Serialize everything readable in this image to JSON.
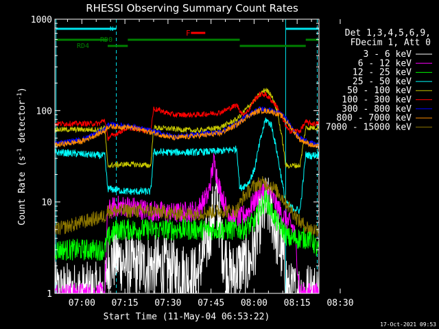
{
  "chart_data": {
    "type": "line",
    "title": "RHESSI Observing Summary Count Rates",
    "xlabel": "Start Time (11-May-04 06:53:22)",
    "ylabel_main": "Count Rate (s",
    "ylabel_sup1": "-1",
    "ylabel_mid": " detector",
    "ylabel_sup2": "-1",
    "ylabel_end": ")",
    "yscale": "log",
    "ylim": [
      1,
      1000
    ],
    "xlim_minutes": [
      -9.4,
      82.6
    ],
    "x_tick_labels": [
      "07:00",
      "07:15",
      "07:30",
      "07:45",
      "08:00",
      "08:15",
      "08:30"
    ],
    "x_tick_minutes": [
      0,
      15,
      30,
      45,
      60,
      75,
      90
    ],
    "y_tick_labels": [
      "1",
      "10",
      "100",
      "1000"
    ],
    "y_tick_values": [
      1,
      10,
      100,
      1000
    ],
    "legend_header": [
      "Det 1,3,4,5,6,9,",
      "FDecim 1, Att 0"
    ],
    "timestamp": "17-Oct-2021 09:53",
    "series": [
      {
        "name": "3 - 6 keV",
        "color": "#ffffff",
        "x": [
          -9,
          8,
          9,
          12,
          16,
          24,
          32,
          40,
          44,
          47,
          49,
          52,
          55,
          58,
          60,
          62,
          64,
          66,
          68,
          70,
          72,
          74,
          76,
          78,
          80,
          82
        ],
        "y": [
          1,
          1,
          2,
          2.5,
          2,
          2,
          1.8,
          1.5,
          4,
          12,
          3,
          1.5,
          2,
          2,
          3,
          6,
          9,
          8,
          4,
          2.5,
          1,
          1,
          1,
          1,
          1,
          1
        ]
      },
      {
        "name": "6 - 12 keV",
        "color": "#ff00ff",
        "x": [
          -9,
          8,
          9,
          12,
          16,
          24,
          32,
          40,
          44,
          46,
          48,
          50,
          52,
          55,
          58,
          60,
          62,
          64,
          66,
          68,
          70,
          72,
          74,
          76,
          78,
          80,
          82
        ],
        "y": [
          1,
          1,
          8,
          9,
          9,
          8,
          7.5,
          8,
          12,
          28,
          14,
          9,
          7,
          6.5,
          8,
          10,
          13,
          14,
          12,
          9,
          7,
          6,
          5,
          1,
          1,
          1,
          1
        ]
      },
      {
        "name": "12 - 25 keV",
        "color": "#00ff00",
        "x": [
          -9,
          8,
          9,
          12,
          16,
          24,
          32,
          40,
          46,
          52,
          56,
          60,
          62,
          64,
          66,
          68,
          70,
          72,
          76,
          80,
          82
        ],
        "y": [
          3,
          3,
          4,
          5,
          5,
          5,
          5,
          5,
          5,
          5,
          5,
          6,
          8,
          11,
          8,
          6,
          5,
          4,
          4,
          4,
          3
        ]
      },
      {
        "name": "25 - 50 keV",
        "color": "#00ffff",
        "x": [
          -9,
          8,
          9,
          16,
          24,
          25,
          32,
          40,
          48,
          54,
          55,
          58,
          60,
          62,
          64,
          66,
          68,
          70,
          71,
          72,
          76,
          78,
          80,
          82
        ],
        "y": [
          35,
          32,
          14,
          13,
          13,
          35,
          35,
          35,
          36,
          38,
          14,
          16,
          22,
          45,
          80,
          70,
          35,
          15,
          10,
          9,
          8,
          33,
          32,
          33
        ]
      },
      {
        "name": "50 - 100 keV",
        "color": "#c8c800",
        "x": [
          -9,
          6,
          8,
          9,
          16,
          24,
          25,
          32,
          40,
          48,
          54,
          58,
          62,
          64,
          66,
          68,
          70,
          71,
          72,
          76,
          78,
          80,
          82
        ],
        "y": [
          62,
          62,
          65,
          25,
          26,
          25,
          65,
          63,
          60,
          65,
          80,
          110,
          150,
          170,
          150,
          100,
          45,
          25,
          25,
          25,
          65,
          65,
          65
        ]
      },
      {
        "name": "100 - 300 keV",
        "color": "#ff0000",
        "x": [
          -9,
          6,
          8,
          9,
          16,
          24,
          25,
          32,
          40,
          48,
          54,
          56,
          58,
          60,
          62,
          64,
          66,
          68,
          70,
          72,
          76,
          78,
          80,
          82
        ],
        "y": [
          72,
          72,
          80,
          50,
          65,
          60,
          105,
          90,
          90,
          95,
          115,
          90,
          100,
          130,
          150,
          150,
          130,
          110,
          80,
          60,
          60,
          75,
          72,
          72
        ]
      },
      {
        "name": "300 - 800 keV",
        "color": "#0000ff",
        "x": [
          -9,
          0,
          8,
          9,
          16,
          24,
          32,
          40,
          48,
          54,
          58,
          62,
          66,
          70,
          74,
          76,
          80,
          82
        ],
        "y": [
          44,
          48,
          62,
          70,
          68,
          60,
          52,
          55,
          58,
          72,
          90,
          105,
          100,
          90,
          60,
          50,
          44,
          42
        ]
      },
      {
        "name": "800 - 7000 keV",
        "color": "#ff8c00",
        "x": [
          -9,
          0,
          8,
          9,
          16,
          24,
          32,
          40,
          48,
          54,
          58,
          62,
          66,
          70,
          74,
          76,
          80,
          82
        ],
        "y": [
          42,
          46,
          60,
          67,
          66,
          58,
          50,
          53,
          56,
          70,
          88,
          100,
          98,
          86,
          58,
          48,
          42,
          40
        ]
      },
      {
        "name": "7000 - 15000 keV",
        "color": "#8b7500",
        "x": [
          -9,
          0,
          8,
          9,
          16,
          24,
          32,
          40,
          48,
          54,
          56,
          58,
          60,
          62,
          64,
          66,
          68,
          70,
          72,
          76,
          80,
          82
        ],
        "y": [
          5,
          6,
          7,
          8,
          8,
          8,
          7.5,
          7.5,
          8,
          8,
          11,
          13,
          15,
          16,
          16,
          15,
          13,
          11,
          9,
          6,
          5,
          5
        ]
      }
    ],
    "annotations": {
      "N": {
        "label": "N",
        "color": "#00e5ee",
        "segments": [
          [
            -9,
            12
          ],
          [
            71,
            82.6
          ]
        ]
      },
      "RD0": {
        "label": "RD0",
        "color": "#008000",
        "segments": [
          [
            -9,
            9
          ],
          [
            16,
            55
          ],
          [
            78,
            82.6
          ]
        ]
      },
      "RD4": {
        "label": "RD4",
        "color": "#008000",
        "segments": [
          [
            9,
            16
          ],
          [
            55,
            78
          ]
        ]
      },
      "F": {
        "label": "F",
        "color": "#ff0000",
        "segments": [
          [
            38,
            43
          ]
        ]
      }
    },
    "vertical_markers": {
      "solid": [
        -9,
        71
      ],
      "dashed": [
        12,
        82
      ],
      "color": "#00e5ee"
    }
  }
}
